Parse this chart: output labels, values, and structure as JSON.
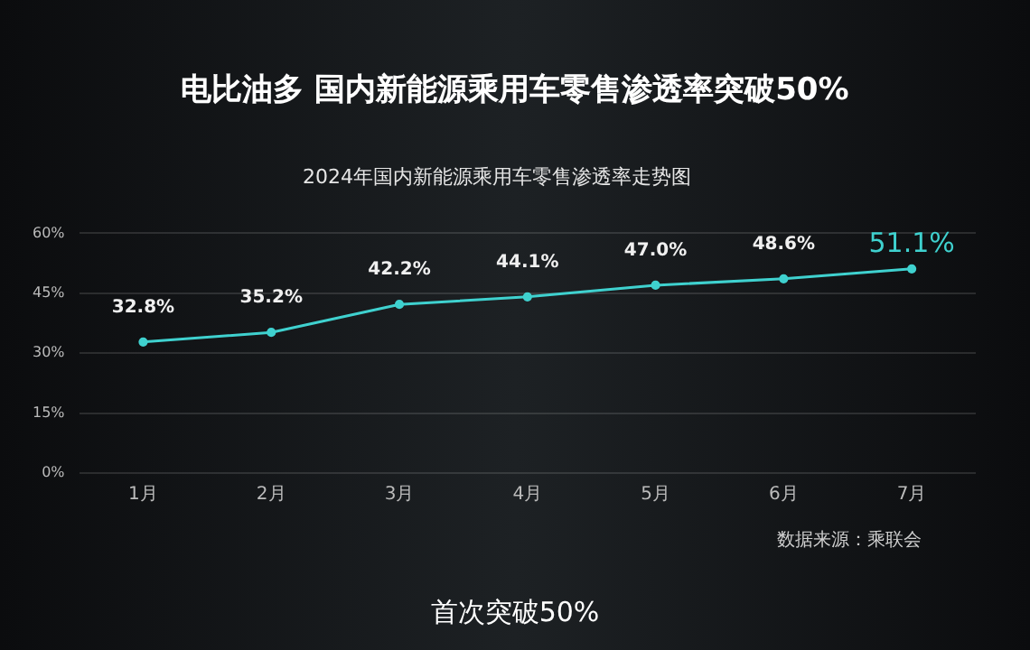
{
  "chart_data": {
    "type": "line",
    "title": "电比油多 国内新能源乘用车零售渗透率突破50%",
    "subtitle": "2024年国内新能源乘用车零售渗透率走势图",
    "categories": [
      "1月",
      "2月",
      "3月",
      "4月",
      "5月",
      "6月",
      "7月"
    ],
    "series": [
      {
        "color": "#3fd1cf",
        "values": [
          32.8,
          35.2,
          42.2,
          44.1,
          47.0,
          48.6,
          51.1
        ],
        "value_labels": [
          "32.8%",
          "35.2%",
          "42.2%",
          "44.1%",
          "47.0%",
          "48.6%",
          "51.1%"
        ]
      }
    ],
    "ylim": [
      0,
      60
    ],
    "yticks": [
      {
        "value": 0,
        "label": "0%"
      },
      {
        "value": 15,
        "label": "15%"
      },
      {
        "value": 30,
        "label": "30%"
      },
      {
        "value": 45,
        "label": "45%"
      },
      {
        "value": 60,
        "label": "60%"
      }
    ],
    "grid": "y",
    "legend": false,
    "marker": "circle",
    "line_style": "solid",
    "annotations": [
      "数据来源：乘联会",
      "首次突破50%"
    ]
  }
}
